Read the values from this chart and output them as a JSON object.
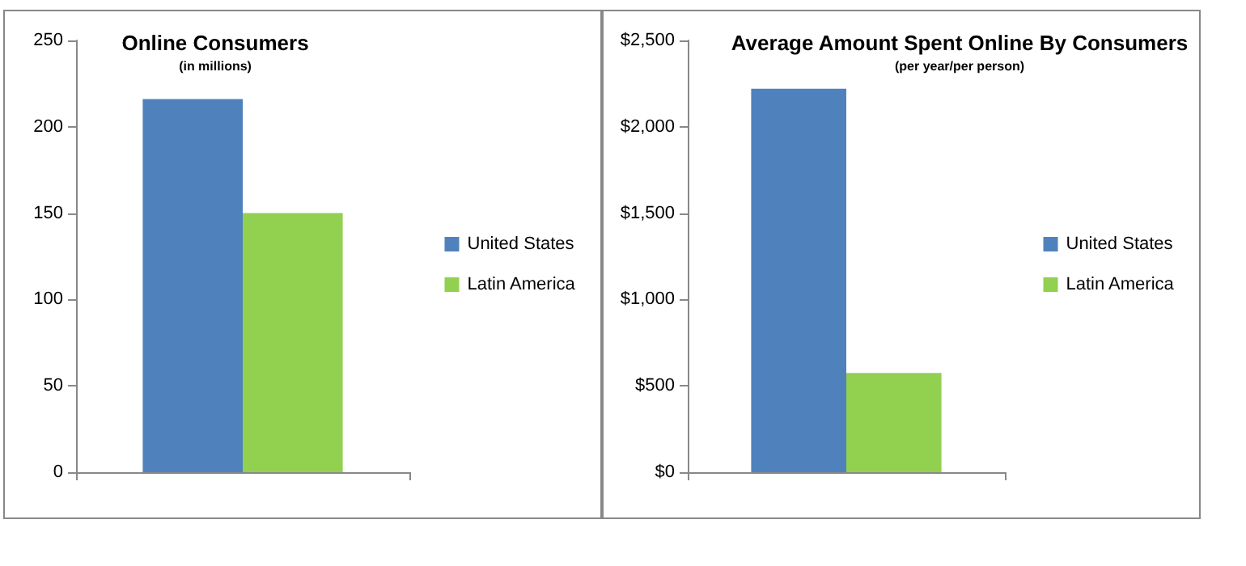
{
  "chart_data": [
    {
      "type": "bar",
      "title": "Online Consumers",
      "subtitle": "(in millions)",
      "categories": [
        null
      ],
      "series": [
        {
          "name": "United States",
          "color": "#4f81bd",
          "values": [
            216
          ]
        },
        {
          "name": "Latin America",
          "color": "#92d050",
          "values": [
            150
          ]
        }
      ],
      "ylim": [
        0,
        250
      ],
      "yticks": [
        0,
        50,
        100,
        150,
        200,
        250
      ],
      "grid": false,
      "legend": "right"
    },
    {
      "type": "bar",
      "title": "Average Amount Spent Online By Consumers",
      "subtitle": "(per year/per person)",
      "categories": [
        null
      ],
      "series": [
        {
          "name": "United States",
          "color": "#4f81bd",
          "values": [
            2220
          ]
        },
        {
          "name": "Latin America",
          "color": "#92d050",
          "values": [
            575
          ]
        }
      ],
      "ylim": [
        0,
        2500
      ],
      "yticks": [
        {
          "value": 0,
          "label": "$0"
        },
        {
          "value": 500,
          "label": "$500"
        },
        {
          "value": 1000,
          "label": "$1,000"
        },
        {
          "value": 1500,
          "label": "$1,500"
        },
        {
          "value": 2000,
          "label": "$2,000"
        },
        {
          "value": 2500,
          "label": "$2,500"
        }
      ],
      "grid": false,
      "legend": "right"
    }
  ]
}
